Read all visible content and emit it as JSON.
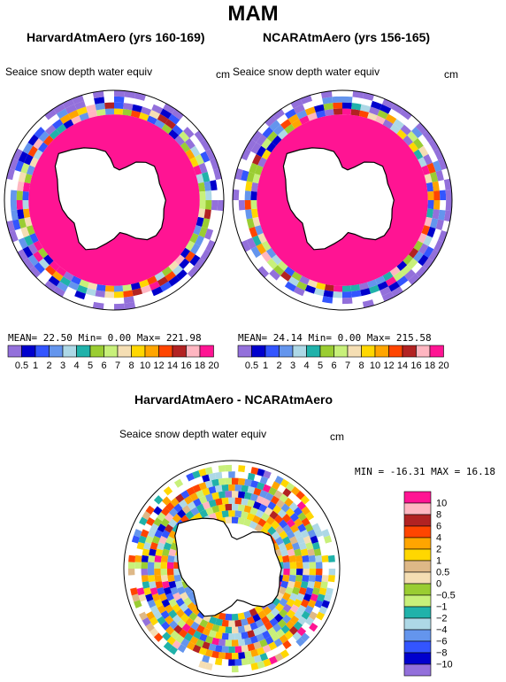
{
  "figure": {
    "title": "MAM",
    "variable": "Seaice snow depth water equiv",
    "unit": "cm"
  },
  "panels": [
    {
      "title": "HarvardAtmAero (yrs 160-169)",
      "stats": {
        "mean_label": "MEAN=",
        "mean": "22.50",
        "min_label": "Min=",
        "min": "0.00",
        "max_label": "Max=",
        "max": "221.98"
      }
    },
    {
      "title": "NCARAtmAero (yrs 156-165)",
      "stats": {
        "mean_label": "MEAN=",
        "mean": "24.14",
        "min_label": "Min=",
        "min": "0.00",
        "max_label": "Max=",
        "max": "215.58"
      }
    },
    {
      "title": "HarvardAtmAero - NCARAtmAero",
      "stats": {
        "text": "MIN = -16.31   MAX =  16.18"
      }
    }
  ],
  "colorbars": {
    "abs": {
      "labels": [
        "0.5",
        "1",
        "2",
        "3",
        "4",
        "5",
        "6",
        "7",
        "8",
        "10",
        "12",
        "14",
        "16",
        "18",
        "20"
      ],
      "colors": [
        "#9370db",
        "#0000cd",
        "#3355ff",
        "#6495ed",
        "#add8e6",
        "#20b2aa",
        "#9acd32",
        "#c8f07a",
        "#f5deb3",
        "#ffd700",
        "#ffa500",
        "#ff4500",
        "#b22222",
        "#ffb6c1",
        "#ff1493"
      ]
    },
    "diff": {
      "labels": [
        "10",
        "8",
        "6",
        "4",
        "2",
        "1",
        "0.5",
        "0",
        "−0.5",
        "−1",
        "−2",
        "−4",
        "−6",
        "−8",
        "−10"
      ],
      "colors": [
        "#ff1493",
        "#ffb6c1",
        "#b22222",
        "#ff4500",
        "#ffa500",
        "#ffd700",
        "#deb887",
        "#f5deb3",
        "#9acd32",
        "#c8f07a",
        "#20b2aa",
        "#add8e6",
        "#6495ed",
        "#3355ff",
        "#0000cd",
        "#9370db"
      ]
    }
  }
}
